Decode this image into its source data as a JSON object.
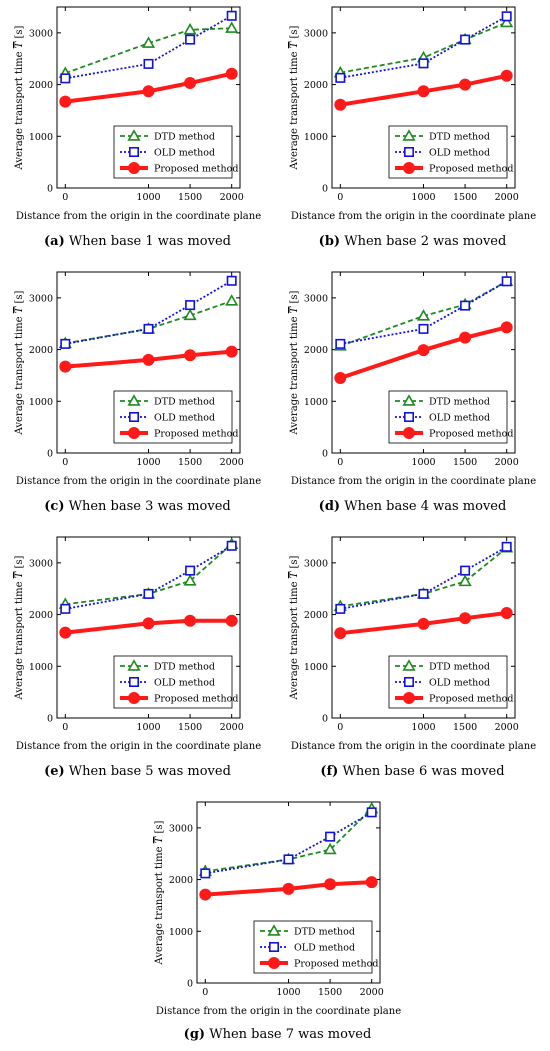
{
  "figure": {
    "xlabel": "Distance from the origin in the coordinate plane",
    "ylabel": "Average transport time",
    "ylabel_symbol": "T",
    "ylabel_unit": "[s]"
  },
  "colors": {
    "dtd": "#1f8a1f",
    "old": "#1010e0",
    "proposed": "#ff1a1a",
    "axis": "#000000"
  },
  "chart_data": [
    {
      "type": "line",
      "caption_letter": "(a)",
      "caption_text": "When base 1 was moved",
      "x": [
        0,
        1000,
        1500,
        2000
      ],
      "x_ticks": [
        "0",
        "1000",
        "1500",
        "2000"
      ],
      "y_ticks": [
        "0",
        "1000",
        "2000",
        "3000"
      ],
      "ylim": [
        0,
        3500
      ],
      "xlabel": "Distance from the origin in the coordinate plane",
      "ylabel": "Average transport time T [s]",
      "legend_position": "bottom-right",
      "series": [
        {
          "name": "DTD method",
          "marker": "triangle",
          "style": "dashed",
          "values": [
            2220,
            2800,
            3060,
            3090
          ]
        },
        {
          "name": "OLD method",
          "marker": "square",
          "style": "dotted",
          "values": [
            2120,
            2400,
            2870,
            3330
          ]
        },
        {
          "name": "Proposed method",
          "marker": "circle",
          "style": "solid",
          "values": [
            1670,
            1870,
            2030,
            2210
          ]
        }
      ]
    },
    {
      "type": "line",
      "caption_letter": "(b)",
      "caption_text": "When base 2 was moved",
      "x": [
        0,
        1000,
        1500,
        2000
      ],
      "x_ticks": [
        "0",
        "1000",
        "1500",
        "2000"
      ],
      "y_ticks": [
        "0",
        "1000",
        "2000",
        "3000"
      ],
      "ylim": [
        0,
        3500
      ],
      "xlabel": "Distance from the origin in the coordinate plane",
      "ylabel": "Average transport time T [s]",
      "legend_position": "bottom-right",
      "series": [
        {
          "name": "DTD method",
          "marker": "triangle",
          "style": "dashed",
          "values": [
            2230,
            2520,
            2870,
            3200
          ]
        },
        {
          "name": "OLD method",
          "marker": "square",
          "style": "dotted",
          "values": [
            2130,
            2410,
            2870,
            3320
          ]
        },
        {
          "name": "Proposed method",
          "marker": "circle",
          "style": "solid",
          "values": [
            1610,
            1870,
            2000,
            2170
          ]
        }
      ]
    },
    {
      "type": "line",
      "caption_letter": "(c)",
      "caption_text": "When base 3 was moved",
      "x": [
        0,
        1000,
        1500,
        2000
      ],
      "x_ticks": [
        "0",
        "1000",
        "1500",
        "2000"
      ],
      "y_ticks": [
        "0",
        "1000",
        "2000",
        "3000"
      ],
      "ylim": [
        0,
        3500
      ],
      "xlabel": "Distance from the origin in the coordinate plane",
      "ylabel": "Average transport time T [s]",
      "legend_position": "bottom-right",
      "series": [
        {
          "name": "DTD method",
          "marker": "triangle",
          "style": "dashed",
          "values": [
            2120,
            2400,
            2660,
            2940
          ]
        },
        {
          "name": "OLD method",
          "marker": "square",
          "style": "dotted",
          "values": [
            2110,
            2400,
            2860,
            3330
          ]
        },
        {
          "name": "Proposed method",
          "marker": "circle",
          "style": "solid",
          "values": [
            1670,
            1800,
            1890,
            1960
          ]
        }
      ]
    },
    {
      "type": "line",
      "caption_letter": "(d)",
      "caption_text": "When base 4 was moved",
      "x": [
        0,
        1000,
        1500,
        2000
      ],
      "x_ticks": [
        "0",
        "1000",
        "1500",
        "2000"
      ],
      "y_ticks": [
        "0",
        "1000",
        "2000",
        "3000"
      ],
      "ylim": [
        0,
        3500
      ],
      "xlabel": "Distance from the origin in the coordinate plane",
      "ylabel": "Average transport time T [s]",
      "legend_position": "bottom-right",
      "series": [
        {
          "name": "DTD method",
          "marker": "triangle",
          "style": "dashed",
          "values": [
            2070,
            2650,
            2870,
            3320
          ]
        },
        {
          "name": "OLD method",
          "marker": "square",
          "style": "dotted",
          "values": [
            2110,
            2400,
            2850,
            3320
          ]
        },
        {
          "name": "Proposed method",
          "marker": "circle",
          "style": "solid",
          "values": [
            1450,
            1990,
            2230,
            2430
          ]
        }
      ]
    },
    {
      "type": "line",
      "caption_letter": "(e)",
      "caption_text": "When base 5 was moved",
      "x": [
        0,
        1000,
        1500,
        2000
      ],
      "x_ticks": [
        "0",
        "1000",
        "1500",
        "2000"
      ],
      "y_ticks": [
        "0",
        "1000",
        "2000",
        "3000"
      ],
      "ylim": [
        0,
        3500
      ],
      "xlabel": "Distance from the origin in the coordinate plane",
      "ylabel": "Average transport time T [s]",
      "legend_position": "bottom-right",
      "series": [
        {
          "name": "DTD method",
          "marker": "triangle",
          "style": "dashed",
          "values": [
            2200,
            2400,
            2650,
            3360
          ]
        },
        {
          "name": "OLD method",
          "marker": "square",
          "style": "dotted",
          "values": [
            2110,
            2400,
            2850,
            3330
          ]
        },
        {
          "name": "Proposed method",
          "marker": "circle",
          "style": "solid",
          "values": [
            1650,
            1830,
            1880,
            1880
          ]
        }
      ]
    },
    {
      "type": "line",
      "caption_letter": "(f)",
      "caption_text": "When base 6 was moved",
      "x": [
        0,
        1000,
        1500,
        2000
      ],
      "x_ticks": [
        "0",
        "1000",
        "1500",
        "2000"
      ],
      "y_ticks": [
        "0",
        "1000",
        "2000",
        "3000"
      ],
      "ylim": [
        0,
        3500
      ],
      "xlabel": "Distance from the origin in the coordinate plane",
      "ylabel": "Average transport time T [s]",
      "legend_position": "bottom-right",
      "series": [
        {
          "name": "DTD method",
          "marker": "triangle",
          "style": "dashed",
          "values": [
            2160,
            2400,
            2640,
            3290
          ]
        },
        {
          "name": "OLD method",
          "marker": "square",
          "style": "dotted",
          "values": [
            2110,
            2400,
            2850,
            3310
          ]
        },
        {
          "name": "Proposed method",
          "marker": "circle",
          "style": "solid",
          "values": [
            1640,
            1820,
            1930,
            2030
          ]
        }
      ]
    },
    {
      "type": "line",
      "caption_letter": "(g)",
      "caption_text": "When base 7 was moved",
      "x": [
        0,
        1000,
        1500,
        2000
      ],
      "x_ticks": [
        "0",
        "1000",
        "1500",
        "2000"
      ],
      "y_ticks": [
        "0",
        "1000",
        "2000",
        "3000"
      ],
      "ylim": [
        0,
        3500
      ],
      "xlabel": "Distance from the origin in the coordinate plane",
      "ylabel": "Average transport time T [s]",
      "legend_position": "bottom-right",
      "series": [
        {
          "name": "DTD method",
          "marker": "triangle",
          "style": "dashed",
          "values": [
            2160,
            2390,
            2580,
            3370
          ]
        },
        {
          "name": "OLD method",
          "marker": "square",
          "style": "dotted",
          "values": [
            2120,
            2390,
            2830,
            3300
          ]
        },
        {
          "name": "Proposed method",
          "marker": "circle",
          "style": "solid",
          "values": [
            1710,
            1820,
            1910,
            1950
          ]
        }
      ]
    }
  ]
}
